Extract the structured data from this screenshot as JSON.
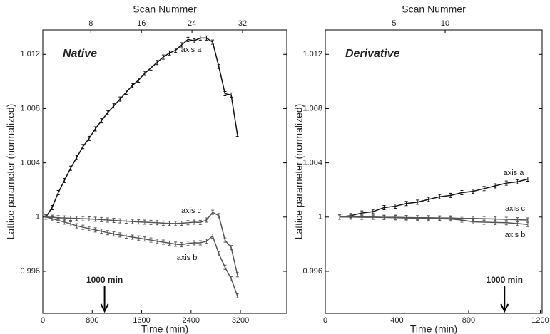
{
  "chart_data": [
    {
      "type": "line",
      "title": "Native",
      "xlabel": "Time (min)",
      "ylabel": "Lattice parameter (normalized)",
      "x2label": "Scan Nummer",
      "x": [
        50,
        150,
        250,
        350,
        450,
        550,
        650,
        750,
        850,
        950,
        1050,
        1150,
        1250,
        1350,
        1450,
        1550,
        1650,
        1750,
        1850,
        1950,
        2050,
        2150,
        2250,
        2350,
        2450,
        2550,
        2650,
        2750,
        2850,
        2950,
        3050,
        3150
      ],
      "series": [
        {
          "name": "axis a",
          "color": "#111111",
          "values": [
            1.0,
            1.0007,
            1.0018,
            1.0027,
            1.0036,
            1.0044,
            1.0052,
            1.0058,
            1.0065,
            1.0071,
            1.0077,
            1.0082,
            1.0087,
            1.0092,
            1.0097,
            1.0101,
            1.0106,
            1.011,
            1.0114,
            1.0118,
            1.0121,
            1.0123,
            1.0127,
            1.0131,
            1.013,
            1.0132,
            1.0132,
            1.0129,
            1.0111,
            1.0091,
            1.009,
            1.0061
          ]
        },
        {
          "name": "axis c",
          "color": "#555555",
          "values": [
            1.0,
            0.99998,
            0.99995,
            0.99993,
            0.99991,
            0.9999,
            0.99988,
            0.99986,
            0.99984,
            0.99981,
            0.99978,
            0.99975,
            0.99972,
            0.9997,
            0.99967,
            0.99964,
            0.99962,
            0.9996,
            0.99958,
            0.99955,
            0.99953,
            0.99952,
            0.99954,
            0.99958,
            0.99962,
            0.9996,
            0.99978,
            1.00035,
            1.0001,
            0.9983,
            0.99775,
            0.99575
          ]
        },
        {
          "name": "axis b",
          "color": "#555555",
          "values": [
            1.0,
            0.99988,
            0.99975,
            0.99963,
            0.9995,
            0.99935,
            0.99925,
            0.99915,
            0.99905,
            0.99895,
            0.99885,
            0.99875,
            0.99868,
            0.9986,
            0.99852,
            0.99845,
            0.99838,
            0.9983,
            0.99822,
            0.99815,
            0.99808,
            0.998,
            0.99796,
            0.99806,
            0.9981,
            0.9981,
            0.99822,
            0.9986,
            0.9973,
            0.9963,
            0.99545,
            0.9942
          ]
        }
      ],
      "xlim": [
        0,
        3950
      ],
      "xticks": [
        0,
        800,
        1600,
        2400,
        3200
      ],
      "x2lim": [
        0.4,
        39
      ],
      "x2ticks": [
        8,
        16,
        24,
        32
      ],
      "ylim": [
        0.9929,
        1.0138
      ],
      "yticks": [
        0.996,
        1,
        1.004,
        1.008,
        1.012
      ],
      "annotation": {
        "text": "1000 min",
        "x": 1000
      }
    },
    {
      "type": "line",
      "title": "Derivative",
      "xlabel": "Time (min)",
      "ylabel": "Lattice parameter (normalized)",
      "x2label": "Scan Nummer",
      "x": [
        80,
        142,
        204,
        266,
        328,
        390,
        452,
        514,
        576,
        638,
        700,
        762,
        824,
        886,
        948,
        1010,
        1072,
        1130
      ],
      "series": [
        {
          "name": "axis a",
          "color": "#111111",
          "values": [
            1.0,
            1.0001,
            1.0003,
            1.0004,
            1.0007,
            1.0008,
            1.001,
            1.0011,
            1.0013,
            1.0015,
            1.0016,
            1.0018,
            1.0019,
            1.0021,
            1.0023,
            1.0025,
            1.0026,
            1.0028
          ]
        },
        {
          "name": "axis c",
          "color": "#555555",
          "values": [
            1.0,
            1.0,
            1.0,
            1.0,
            0.99998,
            0.99998,
            0.99996,
            0.99995,
            0.99995,
            0.99993,
            0.99993,
            0.9999,
            0.9999,
            0.99988,
            0.99985,
            0.99983,
            0.9998,
            0.99978
          ]
        },
        {
          "name": "axis b",
          "color": "#555555",
          "values": [
            1.0,
            1.0,
            0.99998,
            0.99998,
            0.99997,
            0.99995,
            0.99993,
            0.99992,
            0.9999,
            0.99988,
            0.99985,
            0.99978,
            0.99965,
            0.99962,
            0.9996,
            0.99958,
            0.99952,
            0.99945
          ]
        }
      ],
      "xlim": [
        0,
        1210
      ],
      "xticks": [
        0,
        400,
        800,
        1200
      ],
      "x2lim": [
        -1.74,
        19.5
      ],
      "x2ticks": [
        5,
        10
      ],
      "ylim": [
        0.9929,
        1.0138
      ],
      "yticks": [
        0.996,
        1,
        1.004,
        1.008,
        1.012
      ],
      "annotation": {
        "text": "1000 min",
        "x": 1000
      }
    }
  ]
}
